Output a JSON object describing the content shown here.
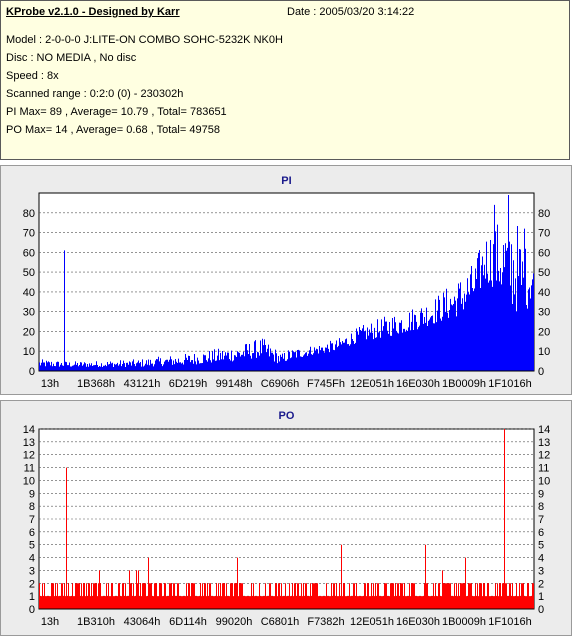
{
  "header": {
    "title": "KProbe v2.1.0 - Designed by Karr",
    "date": "Date : 2005/03/20 3:14:22",
    "lines": [
      "Model : 2-0-0-0 J:LITE-ON COMBO SOHC-5232K NK0H",
      "Disc : NO MEDIA , No disc",
      "Speed : 8x",
      "Scanned range : 0:2:0 (0) - 230302h",
      "PI Max= 89 , Average= 10.79 , Total= 783651",
      "PO Max= 14 , Average= 0.68 , Total= 49758"
    ]
  },
  "chart_data": [
    {
      "type": "bar",
      "title": "PI",
      "color": "#0000ff",
      "ylim": [
        0,
        90
      ],
      "yticks": [
        0,
        10,
        20,
        30,
        40,
        50,
        60,
        70,
        80
      ],
      "xtick_labels": [
        "13h",
        "1B368h",
        "43121h",
        "6D219h",
        "99148h",
        "C6906h",
        "F745Fh",
        "12E051h",
        "16E030h",
        "1B0009h",
        "1F1016h"
      ],
      "grid": "horizontal-dashed",
      "envelope": {
        "x_fraction": [
          0,
          0.05,
          0.1,
          0.2,
          0.3,
          0.4,
          0.45,
          0.49,
          0.5,
          0.55,
          0.6,
          0.65,
          0.7,
          0.75,
          0.8,
          0.85,
          0.88,
          0.9,
          0.93,
          0.96,
          0.98,
          1.0
        ],
        "base": [
          2,
          2,
          2,
          2,
          3,
          5,
          7,
          3,
          5,
          8,
          10,
          15,
          17,
          20,
          24,
          28,
          35,
          45,
          40,
          30,
          28,
          40
        ],
        "peak": [
          6,
          5,
          5,
          6,
          9,
          13,
          17,
          9,
          11,
          13,
          16,
          23,
          28,
          32,
          38,
          48,
          56,
          70,
          77,
          80,
          65,
          60
        ]
      },
      "spikes": [
        {
          "x_fraction": 0.05,
          "value": 61
        },
        {
          "x_fraction": 0.947,
          "value": 89
        },
        {
          "x_fraction": 0.92,
          "value": 84
        },
        {
          "x_fraction": 0.98,
          "value": 72
        }
      ]
    },
    {
      "type": "bar",
      "title": "PO",
      "color": "#ff0000",
      "ylim": [
        0,
        14
      ],
      "yticks": [
        0,
        1,
        2,
        3,
        4,
        5,
        6,
        7,
        8,
        9,
        10,
        11,
        12,
        13,
        14
      ],
      "xtick_labels": [
        "13h",
        "1B310h",
        "43064h",
        "6D114h",
        "99020h",
        "C6801h",
        "F7382h",
        "12E051h",
        "16E030h",
        "1B0009h",
        "1F1016h"
      ],
      "grid": "horizontal-dashed",
      "baseline": 1,
      "typical_peak": 2,
      "spikes": [
        {
          "x_fraction": 0.055,
          "value": 11
        },
        {
          "x_fraction": 0.2,
          "value": 3
        },
        {
          "x_fraction": 0.22,
          "value": 4
        },
        {
          "x_fraction": 0.4,
          "value": 4
        },
        {
          "x_fraction": 0.61,
          "value": 5
        },
        {
          "x_fraction": 0.78,
          "value": 5
        },
        {
          "x_fraction": 0.86,
          "value": 4
        },
        {
          "x_fraction": 0.94,
          "value": 14
        }
      ]
    }
  ]
}
